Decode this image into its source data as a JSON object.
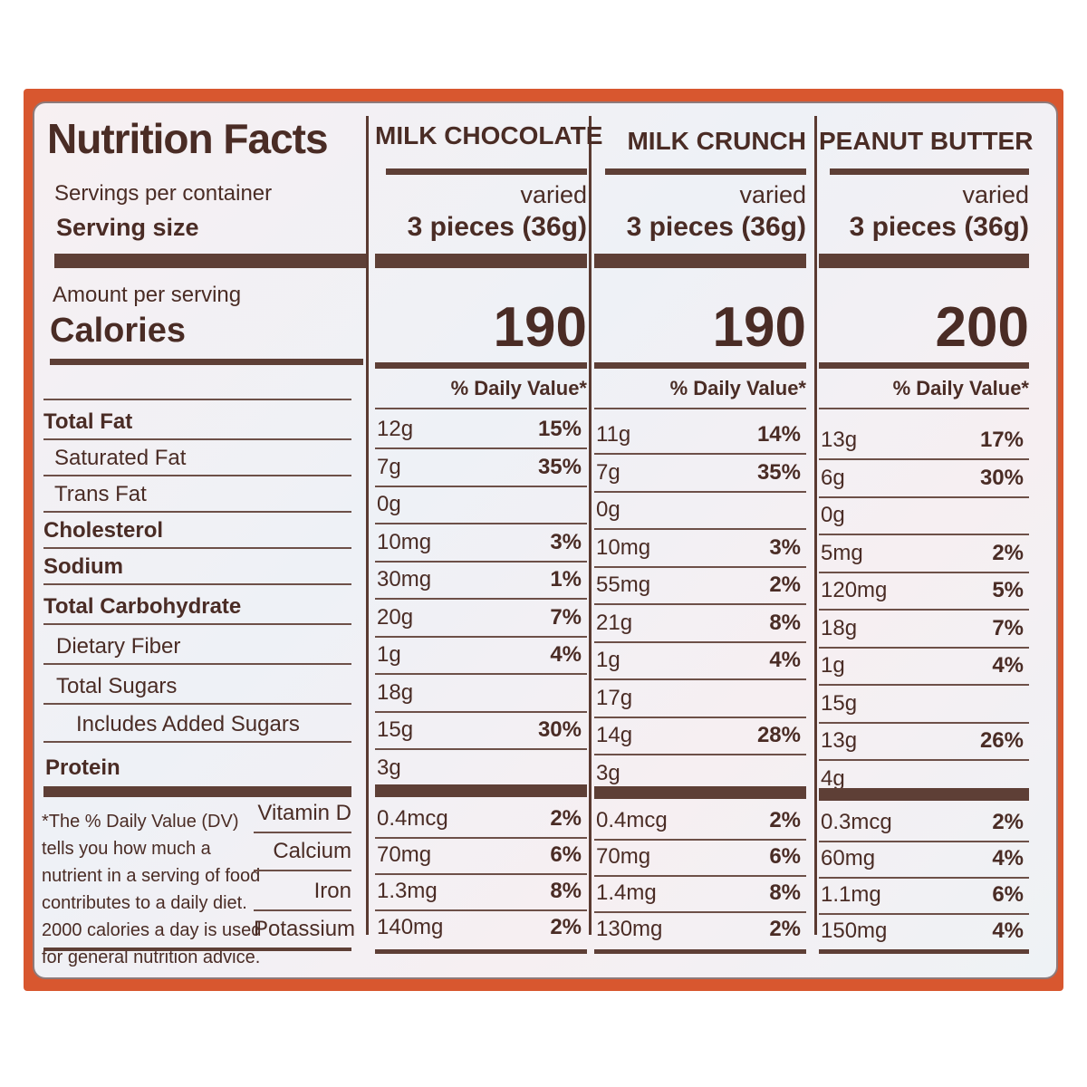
{
  "label": {
    "title": "Nutrition Facts",
    "servings_label": "Servings per container",
    "serving_size_label": "Serving size",
    "amount_label": "Amount per serving",
    "calories_label": "Calories",
    "dv_header": "% Daily Value*",
    "footnote": [
      "*The % Daily Value (DV)",
      "tells you how much a",
      "nutrient in a serving of food",
      "contributes to a daily diet.",
      "2000 calories a day is used",
      "for general nutrition advice."
    ]
  },
  "nutrients": [
    {
      "name": "Total Fat",
      "bold": true
    },
    {
      "name": "Saturated Fat"
    },
    {
      "name": "Trans Fat"
    },
    {
      "name": "Cholesterol",
      "bold": true
    },
    {
      "name": "Sodium",
      "bold": true
    },
    {
      "name": "Total Carbohydrate",
      "bold": true
    },
    {
      "name": "Dietary Fiber"
    },
    {
      "name": "Total Sugars"
    },
    {
      "name": "Includes Added Sugars"
    },
    {
      "name": "Protein",
      "bold": true
    }
  ],
  "vitamins": [
    "Vitamin D",
    "Calcium",
    "Iron",
    "Potassium"
  ],
  "products": [
    {
      "name": "MILK CHOCOLATE",
      "servings": "varied",
      "serving_size": "3 pieces (36g)",
      "calories": "190",
      "values": [
        [
          "12g",
          "15%"
        ],
        [
          "7g",
          "35%"
        ],
        [
          "0g",
          ""
        ],
        [
          "10mg",
          "3%"
        ],
        [
          "30mg",
          "1%"
        ],
        [
          "20g",
          "7%"
        ],
        [
          "1g",
          "4%"
        ],
        [
          "18g",
          ""
        ],
        [
          "15g",
          "30%"
        ],
        [
          "3g",
          ""
        ]
      ],
      "vitamins": [
        [
          "0.4mcg",
          "2%"
        ],
        [
          "70mg",
          "6%"
        ],
        [
          "1.3mg",
          "8%"
        ],
        [
          "140mg",
          "2%"
        ]
      ]
    },
    {
      "name": "MILK CRUNCH",
      "servings": "varied",
      "serving_size": "3 pieces (36g)",
      "calories": "190",
      "values": [
        [
          "11g",
          "14%"
        ],
        [
          "7g",
          "35%"
        ],
        [
          "0g",
          ""
        ],
        [
          "10mg",
          "3%"
        ],
        [
          "55mg",
          "2%"
        ],
        [
          "21g",
          "8%"
        ],
        [
          "1g",
          "4%"
        ],
        [
          "17g",
          ""
        ],
        [
          "14g",
          "28%"
        ],
        [
          "3g",
          ""
        ]
      ],
      "vitamins": [
        [
          "0.4mcg",
          "2%"
        ],
        [
          "70mg",
          "6%"
        ],
        [
          "1.4mg",
          "8%"
        ],
        [
          "130mg",
          "2%"
        ]
      ]
    },
    {
      "name": "PEANUT BUTTER",
      "servings": "varied",
      "serving_size": "3 pieces (36g)",
      "calories": "200",
      "values": [
        [
          "13g",
          "17%"
        ],
        [
          "6g",
          "30%"
        ],
        [
          "0g",
          ""
        ],
        [
          "5mg",
          "2%"
        ],
        [
          "120mg",
          "5%"
        ],
        [
          "18g",
          "7%"
        ],
        [
          "1g",
          "4%"
        ],
        [
          "15g",
          ""
        ],
        [
          "13g",
          "26%"
        ],
        [
          "4g",
          ""
        ]
      ],
      "vitamins": [
        [
          "0.3mcg",
          "2%"
        ],
        [
          "60mg",
          "4%"
        ],
        [
          "1.1mg",
          "6%"
        ],
        [
          "150mg",
          "4%"
        ]
      ]
    }
  ]
}
